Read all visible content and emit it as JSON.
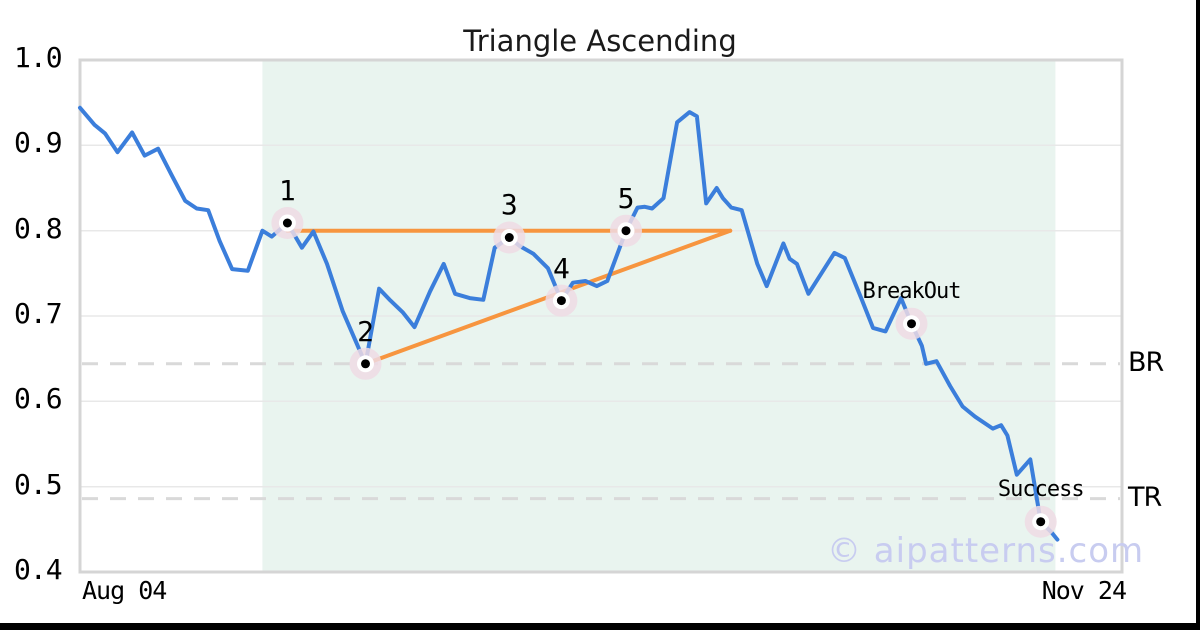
{
  "chart_data": {
    "type": "line",
    "title": "Triangle Ascending",
    "x_axis": {
      "start_label": "Aug 04",
      "end_label": "Nov 24"
    },
    "y_axis": {
      "min": 0.4,
      "max": 1.0,
      "ticks": [
        "1.0",
        "0.9",
        "0.8",
        "0.7",
        "0.6",
        "0.5",
        "0.4"
      ]
    },
    "grid": true,
    "pattern_zone": {
      "x_from": 0.175,
      "x_to": 0.936
    },
    "series": [
      {
        "name": "price",
        "points": [
          [
            0.0,
            0.944
          ],
          [
            0.014,
            0.924
          ],
          [
            0.024,
            0.914
          ],
          [
            0.036,
            0.892
          ],
          [
            0.05,
            0.915
          ],
          [
            0.062,
            0.888
          ],
          [
            0.075,
            0.896
          ],
          [
            0.088,
            0.865
          ],
          [
            0.101,
            0.835
          ],
          [
            0.112,
            0.826
          ],
          [
            0.123,
            0.824
          ],
          [
            0.134,
            0.788
          ],
          [
            0.146,
            0.755
          ],
          [
            0.161,
            0.753
          ],
          [
            0.175,
            0.8
          ],
          [
            0.184,
            0.793
          ],
          [
            0.199,
            0.809
          ],
          [
            0.213,
            0.78
          ],
          [
            0.224,
            0.799
          ],
          [
            0.237,
            0.761
          ],
          [
            0.252,
            0.706
          ],
          [
            0.274,
            0.644
          ],
          [
            0.287,
            0.732
          ],
          [
            0.298,
            0.718
          ],
          [
            0.31,
            0.704
          ],
          [
            0.321,
            0.687
          ],
          [
            0.336,
            0.729
          ],
          [
            0.349,
            0.761
          ],
          [
            0.36,
            0.726
          ],
          [
            0.374,
            0.721
          ],
          [
            0.387,
            0.719
          ],
          [
            0.398,
            0.78
          ],
          [
            0.412,
            0.792
          ],
          [
            0.422,
            0.782
          ],
          [
            0.435,
            0.773
          ],
          [
            0.449,
            0.756
          ],
          [
            0.462,
            0.718
          ],
          [
            0.473,
            0.739
          ],
          [
            0.485,
            0.741
          ],
          [
            0.496,
            0.735
          ],
          [
            0.506,
            0.741
          ],
          [
            0.524,
            0.8
          ],
          [
            0.535,
            0.827
          ],
          [
            0.542,
            0.828
          ],
          [
            0.549,
            0.826
          ],
          [
            0.56,
            0.838
          ],
          [
            0.573,
            0.927
          ],
          [
            0.585,
            0.939
          ],
          [
            0.592,
            0.934
          ],
          [
            0.601,
            0.832
          ],
          [
            0.611,
            0.85
          ],
          [
            0.617,
            0.838
          ],
          [
            0.625,
            0.827
          ],
          [
            0.635,
            0.824
          ],
          [
            0.65,
            0.761
          ],
          [
            0.659,
            0.735
          ],
          [
            0.675,
            0.785
          ],
          [
            0.681,
            0.767
          ],
          [
            0.688,
            0.761
          ],
          [
            0.699,
            0.726
          ],
          [
            0.724,
            0.774
          ],
          [
            0.734,
            0.768
          ],
          [
            0.75,
            0.72
          ],
          [
            0.761,
            0.686
          ],
          [
            0.773,
            0.682
          ],
          [
            0.788,
            0.721
          ],
          [
            0.798,
            0.691
          ],
          [
            0.808,
            0.665
          ],
          [
            0.812,
            0.644
          ],
          [
            0.822,
            0.647
          ],
          [
            0.835,
            0.618
          ],
          [
            0.847,
            0.594
          ],
          [
            0.859,
            0.582
          ],
          [
            0.876,
            0.568
          ],
          [
            0.884,
            0.572
          ],
          [
            0.89,
            0.56
          ],
          [
            0.899,
            0.514
          ],
          [
            0.912,
            0.532
          ],
          [
            0.922,
            0.459
          ],
          [
            0.932,
            0.447
          ],
          [
            0.938,
            0.438
          ]
        ]
      }
    ],
    "trendlines": [
      {
        "name": "upper-resistance",
        "from": [
          0.199,
          0.8
        ],
        "to": [
          0.624,
          0.8
        ]
      },
      {
        "name": "lower-support",
        "from": [
          0.274,
          0.644
        ],
        "to": [
          0.624,
          0.8
        ]
      }
    ],
    "levels": [
      {
        "label": "BR",
        "value": 0.644
      },
      {
        "label": "TR",
        "value": 0.486
      }
    ],
    "markers": [
      {
        "label": "1",
        "x": 0.199,
        "y": 0.809
      },
      {
        "label": "2",
        "x": 0.274,
        "y": 0.644
      },
      {
        "label": "3",
        "x": 0.412,
        "y": 0.792
      },
      {
        "label": "4",
        "x": 0.462,
        "y": 0.718
      },
      {
        "label": "5",
        "x": 0.524,
        "y": 0.8
      },
      {
        "label": "BreakOut",
        "x": 0.798,
        "y": 0.691
      },
      {
        "label": "Success",
        "x": 0.922,
        "y": 0.459
      }
    ],
    "watermark": "© aipatterns.com",
    "colors": {
      "line": "#3b7edb",
      "trendline": "#f7953f",
      "zone": "#e9f4ef",
      "halo": "#eedbe4",
      "grid": "#e8e8e8",
      "plot_border": "#d5d5d5",
      "level_dash": "#d9d9d9",
      "watermark": "#c8ccf0"
    }
  }
}
